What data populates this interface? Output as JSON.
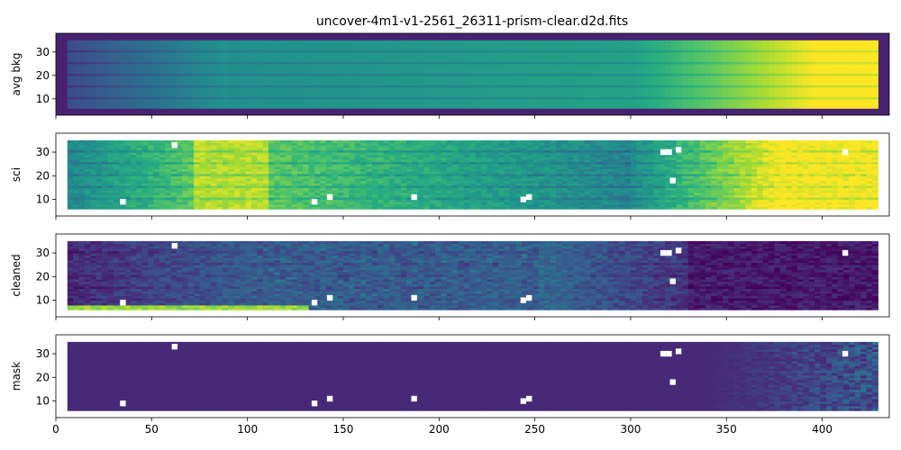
{
  "chart_data": {
    "type": "heatmap",
    "title": "uncover-4m1-v1-2561_26311-prism-clear.d2d.fits",
    "colormap": "viridis",
    "xlabel": "",
    "xlim": [
      0,
      435
    ],
    "x_ticks": [
      0,
      50,
      100,
      150,
      200,
      250,
      300,
      350,
      400
    ],
    "shared_x": true,
    "panels": [
      {
        "name": "avg bkg",
        "ylabel": "avg bkg",
        "ylim": [
          3,
          38
        ],
        "y_ticks": [
          10,
          20,
          30
        ],
        "data_extent": {
          "x": [
            6,
            428
          ],
          "y": [
            6,
            35
          ]
        },
        "description_values": {
          "left_level": 0.25,
          "mid_level": 0.55,
          "right_level": 1.0,
          "saturated_from_x": 395
        }
      },
      {
        "name": "sci",
        "ylabel": "sci",
        "ylim": [
          3,
          38
        ],
        "y_ticks": [
          10,
          20,
          30
        ],
        "data_extent": {
          "x": [
            6,
            428
          ],
          "y": [
            6,
            35
          ]
        },
        "description_values": {
          "left_level": 0.45,
          "bright_band_x": [
            70,
            110
          ],
          "right_level": 1.0,
          "saturated_from_x": 375
        }
      },
      {
        "name": "cleaned",
        "ylabel": "cleaned",
        "ylim": [
          3,
          38
        ],
        "y_ticks": [
          10,
          20,
          30
        ],
        "data_extent": {
          "x": [
            6,
            428
          ],
          "y": [
            6,
            35
          ]
        },
        "description_values": {
          "left_level": 0.15,
          "mid_level": 0.35,
          "right_level": 0.05
        }
      },
      {
        "name": "mask",
        "ylabel": "mask",
        "ylim": [
          3,
          38
        ],
        "y_ticks": [
          10,
          20,
          30
        ],
        "data_extent": {
          "x": [
            6,
            428
          ],
          "y": [
            6,
            35
          ]
        },
        "description_values": {
          "uniform_level": 0.1,
          "noisy_from_x": 340
        }
      }
    ],
    "masked_pixels": [
      {
        "x": 62,
        "y": 33
      },
      {
        "x": 35,
        "y": 9
      },
      {
        "x": 135,
        "y": 9
      },
      {
        "x": 143,
        "y": 11
      },
      {
        "x": 187,
        "y": 11
      },
      {
        "x": 244,
        "y": 10
      },
      {
        "x": 247,
        "y": 11
      },
      {
        "x": 317,
        "y": 30
      },
      {
        "x": 320,
        "y": 30
      },
      {
        "x": 325,
        "y": 31
      },
      {
        "x": 322,
        "y": 18
      },
      {
        "x": 412,
        "y": 30
      }
    ]
  }
}
